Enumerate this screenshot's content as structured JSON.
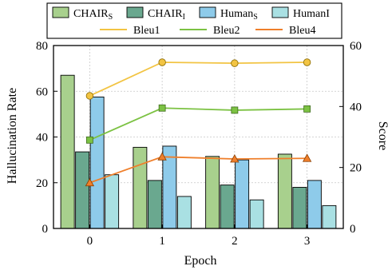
{
  "chart_data": {
    "type": "bar+line",
    "xlabel": "Epoch",
    "ylabel_left": "Hallucination Rate",
    "ylabel_right": "Score",
    "categories": [
      "0",
      "1",
      "2",
      "3"
    ],
    "ylim_left": [
      0,
      80
    ],
    "ylim_right": [
      0,
      60
    ],
    "yticks_left": [
      "0",
      "20",
      "40",
      "60",
      "80"
    ],
    "yticks_right": [
      "0",
      "20",
      "40",
      "60"
    ],
    "grid": true,
    "legend_position": "top",
    "bar_series": [
      {
        "name": "CHAIR",
        "sub": "S",
        "color": "#a8d08d",
        "values": [
          67,
          35.5,
          31.5,
          32.5
        ]
      },
      {
        "name": "CHAIR",
        "sub": "I",
        "color": "#6aa88f",
        "values": [
          33.5,
          21,
          19,
          18
        ]
      },
      {
        "name": "Human",
        "sub": "S",
        "color": "#8ecbea",
        "values": [
          57.5,
          36,
          30,
          21
        ]
      },
      {
        "name": "HumanI",
        "sub": "",
        "color": "#a9e0e3",
        "values": [
          23.5,
          14,
          12.5,
          10
        ]
      }
    ],
    "line_series": [
      {
        "name": "Bleu1",
        "color": "#f2c443",
        "marker": "circle",
        "values": [
          43.5,
          54.5,
          54.2,
          54.5
        ]
      },
      {
        "name": "Bleu2",
        "color": "#7cc243",
        "marker": "square",
        "values": [
          29,
          39.5,
          38.8,
          39.2
        ]
      },
      {
        "name": "Bleu4",
        "color": "#ef7f2b",
        "marker": "triangle",
        "values": [
          15,
          23.5,
          22.8,
          23
        ]
      }
    ]
  }
}
